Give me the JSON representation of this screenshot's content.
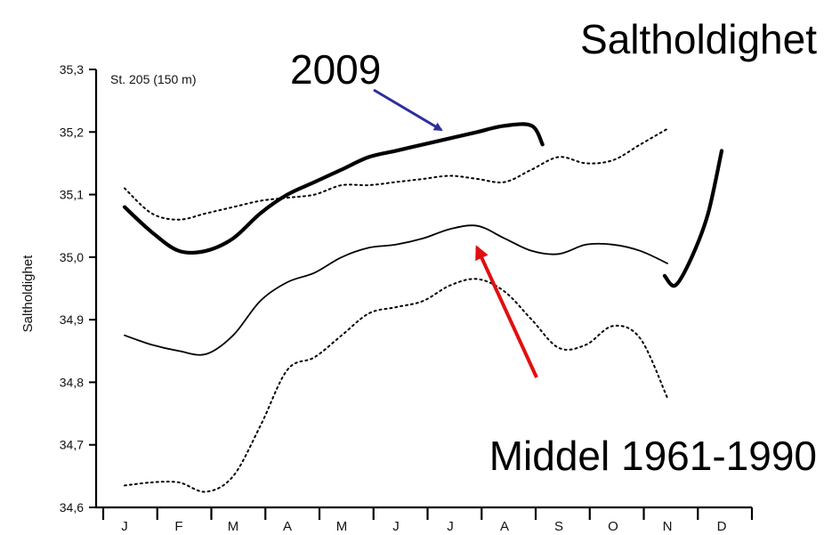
{
  "chart_data": {
    "type": "line",
    "title": "Saltholdighet",
    "station_label": "St. 205 (150 m)",
    "ylabel": "Saltholdighet",
    "xlabel": "",
    "ylim": [
      34.6,
      35.3
    ],
    "y_ticks": [
      "34,6",
      "34,7",
      "34,8",
      "34,9",
      "35,0",
      "35,1",
      "35,2",
      "35,3"
    ],
    "y_tick_values": [
      34.6,
      34.7,
      34.8,
      34.9,
      35.0,
      35.1,
      35.2,
      35.3
    ],
    "x_ticks": [
      "J",
      "F",
      "M",
      "A",
      "M",
      "J",
      "J",
      "A",
      "S",
      "O",
      "N",
      "D"
    ],
    "grid": false,
    "series": [
      {
        "name": "2009",
        "style": "solid-thick",
        "color": "#000000",
        "segments": [
          [
            [
              0,
              35.08
            ],
            [
              0.5,
              35.04
            ],
            [
              1.0,
              35.01
            ],
            [
              1.5,
              35.01
            ],
            [
              2.0,
              35.03
            ],
            [
              2.5,
              35.07
            ],
            [
              3.0,
              35.1
            ],
            [
              3.5,
              35.12
            ],
            [
              4.0,
              35.14
            ],
            [
              4.5,
              35.16
            ],
            [
              5.0,
              35.17
            ],
            [
              5.5,
              35.18
            ],
            [
              6.0,
              35.19
            ],
            [
              6.5,
              35.2
            ],
            [
              7.0,
              35.21
            ],
            [
              7.5,
              35.21
            ],
            [
              7.7,
              35.18
            ]
          ],
          [
            [
              9.95,
              34.97
            ],
            [
              10.15,
              34.955
            ],
            [
              10.45,
              35.0
            ],
            [
              10.75,
              35.07
            ],
            [
              11.0,
              35.17
            ]
          ]
        ]
      },
      {
        "name": "Middel 1961-1990",
        "style": "solid",
        "color": "#000000",
        "segments": [
          [
            [
              0,
              34.875
            ],
            [
              0.5,
              34.86
            ],
            [
              1.0,
              34.85
            ],
            [
              1.5,
              34.845
            ],
            [
              2.0,
              34.875
            ],
            [
              2.5,
              34.93
            ],
            [
              3.0,
              34.96
            ],
            [
              3.5,
              34.975
            ],
            [
              4.0,
              35.0
            ],
            [
              4.5,
              35.015
            ],
            [
              5.0,
              35.02
            ],
            [
              5.5,
              35.03
            ],
            [
              6.0,
              35.045
            ],
            [
              6.5,
              35.05
            ],
            [
              7.0,
              35.03
            ],
            [
              7.5,
              35.01
            ],
            [
              8.0,
              35.005
            ],
            [
              8.5,
              35.02
            ],
            [
              9.0,
              35.02
            ],
            [
              9.5,
              35.01
            ],
            [
              10.0,
              34.99
            ]
          ]
        ]
      },
      {
        "name": "upper",
        "style": "dotted",
        "color": "#000000",
        "segments": [
          [
            [
              0,
              35.11
            ],
            [
              0.5,
              35.07
            ],
            [
              1.0,
              35.06
            ],
            [
              1.5,
              35.07
            ],
            [
              2.0,
              35.08
            ],
            [
              2.5,
              35.09
            ],
            [
              3.0,
              35.095
            ],
            [
              3.5,
              35.1
            ],
            [
              4.0,
              35.115
            ],
            [
              4.5,
              35.115
            ],
            [
              5.0,
              35.12
            ],
            [
              5.5,
              35.125
            ],
            [
              6.0,
              35.13
            ],
            [
              6.5,
              35.125
            ],
            [
              7.0,
              35.12
            ],
            [
              7.5,
              35.14
            ],
            [
              8.0,
              35.16
            ],
            [
              8.5,
              35.15
            ],
            [
              9.0,
              35.155
            ],
            [
              9.5,
              35.18
            ],
            [
              10.0,
              35.205
            ]
          ]
        ]
      },
      {
        "name": "lower",
        "style": "dotted",
        "color": "#000000",
        "segments": [
          [
            [
              0,
              34.635
            ],
            [
              0.5,
              34.64
            ],
            [
              1.0,
              34.64
            ],
            [
              1.5,
              34.625
            ],
            [
              2.0,
              34.65
            ],
            [
              2.5,
              34.73
            ],
            [
              3.0,
              34.82
            ],
            [
              3.5,
              34.84
            ],
            [
              4.0,
              34.875
            ],
            [
              4.5,
              34.91
            ],
            [
              5.0,
              34.92
            ],
            [
              5.5,
              34.93
            ],
            [
              6.0,
              34.955
            ],
            [
              6.5,
              34.965
            ],
            [
              7.0,
              34.945
            ],
            [
              7.5,
              34.9
            ],
            [
              8.0,
              34.855
            ],
            [
              8.5,
              34.86
            ],
            [
              9.0,
              34.89
            ],
            [
              9.5,
              34.87
            ],
            [
              10.0,
              34.775
            ]
          ]
        ]
      }
    ],
    "annotations": [
      {
        "text": "2009",
        "arrow_color": "#2b2f9e"
      },
      {
        "text": "Middel 1961-1990",
        "arrow_color": "#e01010"
      }
    ]
  }
}
